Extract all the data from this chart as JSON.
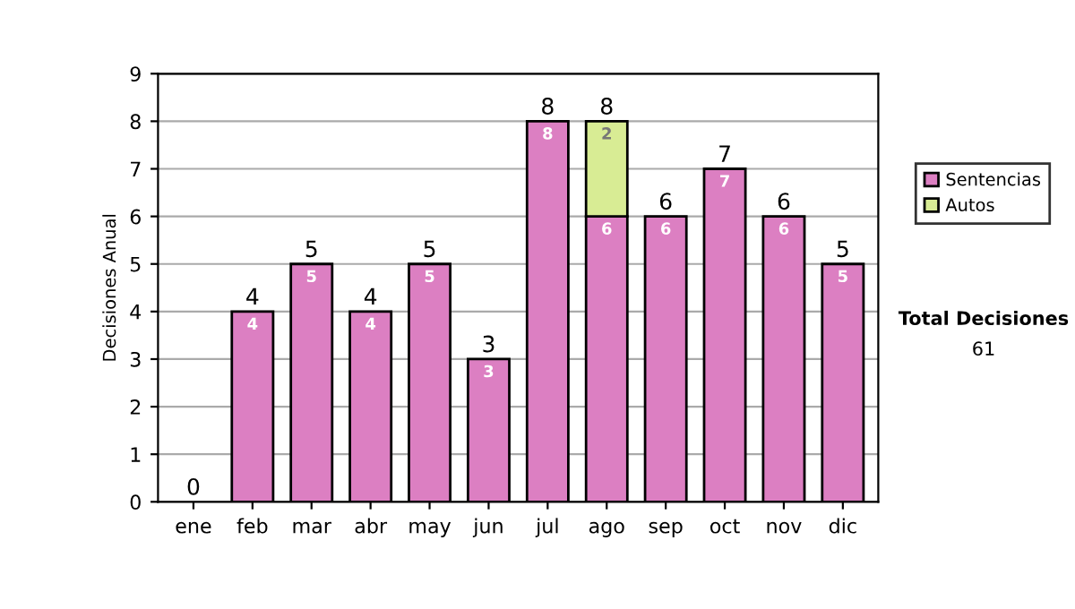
{
  "chart_data": {
    "type": "bar",
    "stacked": true,
    "ylabel": "Decisiones Anual",
    "categories": [
      "ene",
      "feb",
      "mar",
      "abr",
      "may",
      "jun",
      "jul",
      "ago",
      "sep",
      "oct",
      "nov",
      "dic"
    ],
    "series": [
      {
        "name": "Sentencias",
        "color": "#dc7fc2",
        "values": [
          0,
          4,
          5,
          4,
          5,
          3,
          8,
          6,
          6,
          7,
          6,
          5
        ],
        "value_labels": [
          null,
          "4",
          "5",
          "4",
          "5",
          "3",
          "8",
          "6",
          "6",
          "7",
          "6",
          "5"
        ]
      },
      {
        "name": "Autos",
        "color": "#d8ec94",
        "values": [
          null,
          null,
          null,
          null,
          null,
          null,
          null,
          2,
          null,
          null,
          null,
          null
        ],
        "value_labels": [
          null,
          null,
          null,
          null,
          null,
          null,
          null,
          "2",
          null,
          null,
          null,
          null
        ]
      }
    ],
    "totals": [
      "0",
      "4",
      "5",
      "4",
      "5",
      "3",
      "8",
      "8",
      "6",
      "7",
      "6",
      "5"
    ],
    "ylim": [
      0,
      9
    ],
    "yticks": [
      0,
      1,
      2,
      3,
      4,
      5,
      6,
      7,
      8,
      9
    ],
    "grid": "y",
    "legend": "right",
    "annotations": [
      "Total Decisiones",
      "61"
    ]
  }
}
